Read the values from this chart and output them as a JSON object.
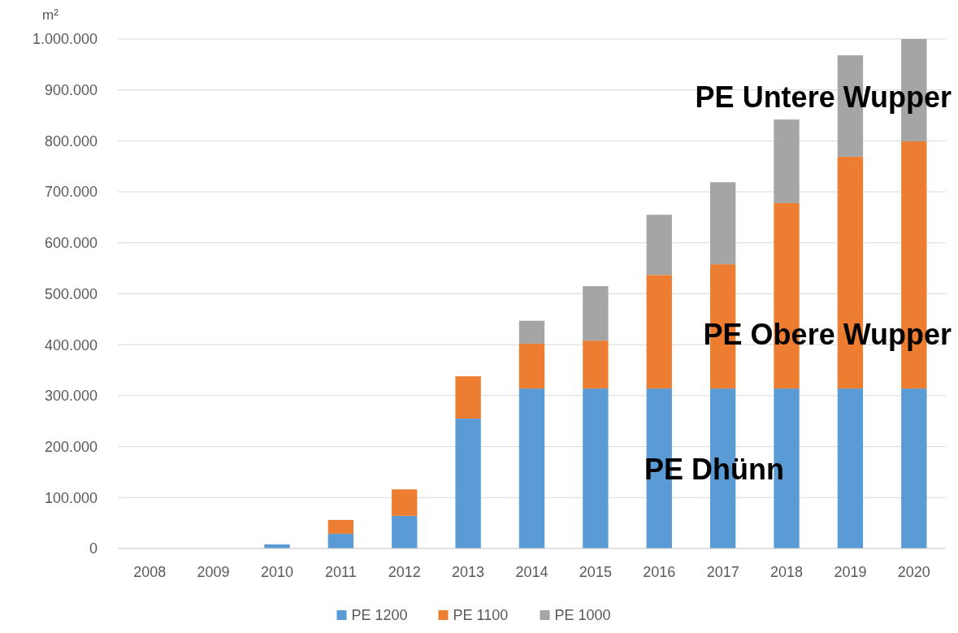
{
  "chart_data": {
    "type": "bar",
    "stacked": true,
    "ylabel": "m²",
    "categories": [
      "2008",
      "2009",
      "2010",
      "2011",
      "2012",
      "2013",
      "2014",
      "2015",
      "2016",
      "2017",
      "2018",
      "2019",
      "2020"
    ],
    "series": [
      {
        "name": "PE 1200",
        "color": "#5b9bd5",
        "values": [
          0,
          0,
          8000,
          29000,
          64000,
          255000,
          314000,
          314000,
          314000,
          314000,
          314000,
          314000,
          314000
        ]
      },
      {
        "name": "PE 1100",
        "color": "#ed7d31",
        "values": [
          0,
          0,
          0,
          27000,
          52000,
          83000,
          88000,
          94000,
          223000,
          244000,
          364000,
          455000,
          485000
        ]
      },
      {
        "name": "PE 1000",
        "color": "#a5a5a5",
        "values": [
          0,
          0,
          0,
          0,
          0,
          0,
          45000,
          107000,
          118000,
          161000,
          164000,
          199000,
          201000
        ]
      }
    ],
    "ylim": [
      0,
      1000000
    ],
    "yticks": [
      {
        "value": 0,
        "label": "0"
      },
      {
        "value": 100000,
        "label": "100.000"
      },
      {
        "value": 200000,
        "label": "200.000"
      },
      {
        "value": 300000,
        "label": "300.000"
      },
      {
        "value": 400000,
        "label": "400.000"
      },
      {
        "value": 500000,
        "label": "500.000"
      },
      {
        "value": 600000,
        "label": "600.000"
      },
      {
        "value": 700000,
        "label": "700.000"
      },
      {
        "value": 800000,
        "label": "800.000"
      },
      {
        "value": 900000,
        "label": "900.000"
      },
      {
        "value": 1000000,
        "label": "1.000.000"
      }
    ],
    "grid": "y",
    "legend": "bottom",
    "annotations": [
      "PE Untere Wupper",
      "PE Obere Wupper",
      "PE Dhünn"
    ]
  }
}
